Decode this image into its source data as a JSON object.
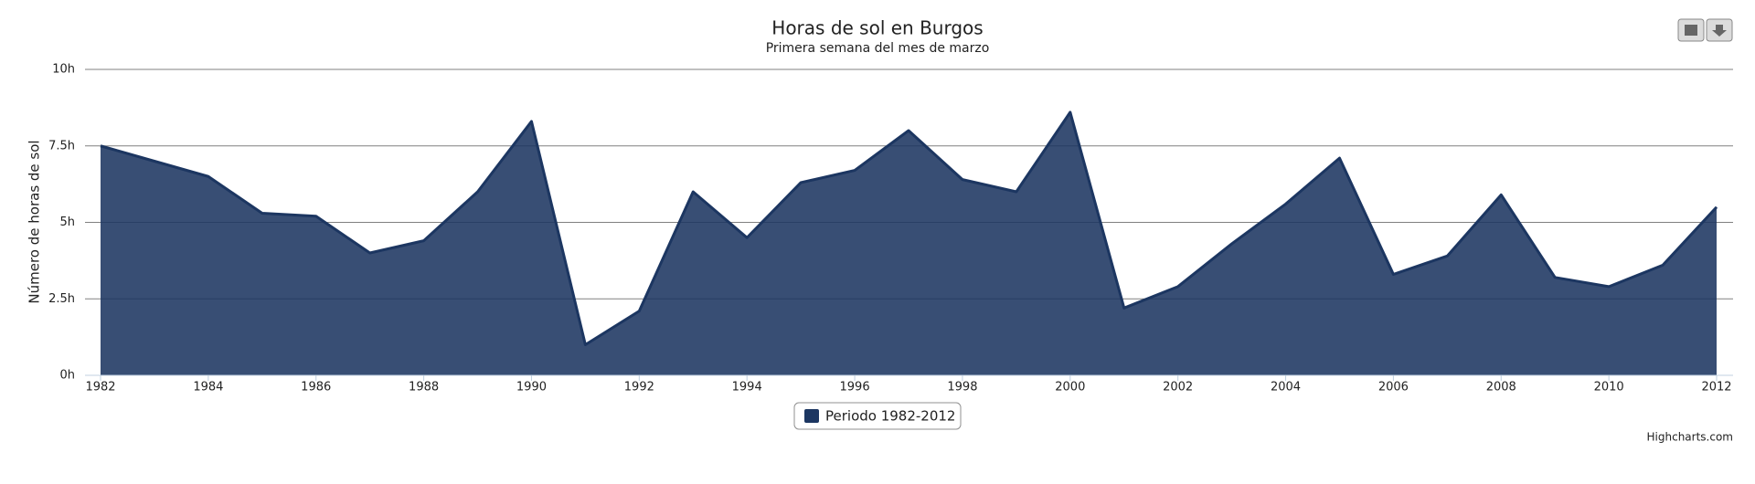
{
  "chart_data": {
    "type": "area",
    "title": "Horas de sol en Burgos",
    "subtitle": "Primera semana del mes de marzo",
    "y_axis_title": "Número de horas de sol",
    "credits": "Highcharts.com",
    "x": [
      1982,
      1983,
      1984,
      1985,
      1986,
      1987,
      1988,
      1989,
      1990,
      1991,
      1992,
      1993,
      1994,
      1995,
      1996,
      1997,
      1998,
      1999,
      2000,
      2001,
      2002,
      2003,
      2004,
      2005,
      2006,
      2007,
      2008,
      2009,
      2010,
      2011,
      2012
    ],
    "series": [
      {
        "name": "Periodo 1982-2012",
        "color": "#1c3661",
        "values": [
          7.5,
          7.0,
          6.5,
          5.3,
          5.2,
          4.0,
          4.4,
          6.0,
          8.3,
          1.0,
          2.1,
          6.0,
          4.5,
          6.3,
          6.7,
          8.0,
          6.4,
          6.0,
          8.6,
          2.2,
          2.9,
          4.3,
          5.6,
          7.1,
          3.3,
          3.9,
          5.9,
          3.2,
          2.9,
          3.6,
          5.5
        ]
      }
    ],
    "xlim": [
      1982,
      2012
    ],
    "xticks": [
      1982,
      1984,
      1986,
      1988,
      1990,
      1992,
      1994,
      1996,
      1998,
      2000,
      2002,
      2004,
      2006,
      2008,
      2010,
      2012
    ],
    "ylim": [
      0,
      10
    ],
    "yticks": [
      {
        "value": 0,
        "label": "0h"
      },
      {
        "value": 2.5,
        "label": "2.5h"
      },
      {
        "value": 5,
        "label": "5h"
      },
      {
        "value": 7.5,
        "label": "7.5h"
      },
      {
        "value": 10,
        "label": "10h"
      }
    ],
    "grid": true
  }
}
